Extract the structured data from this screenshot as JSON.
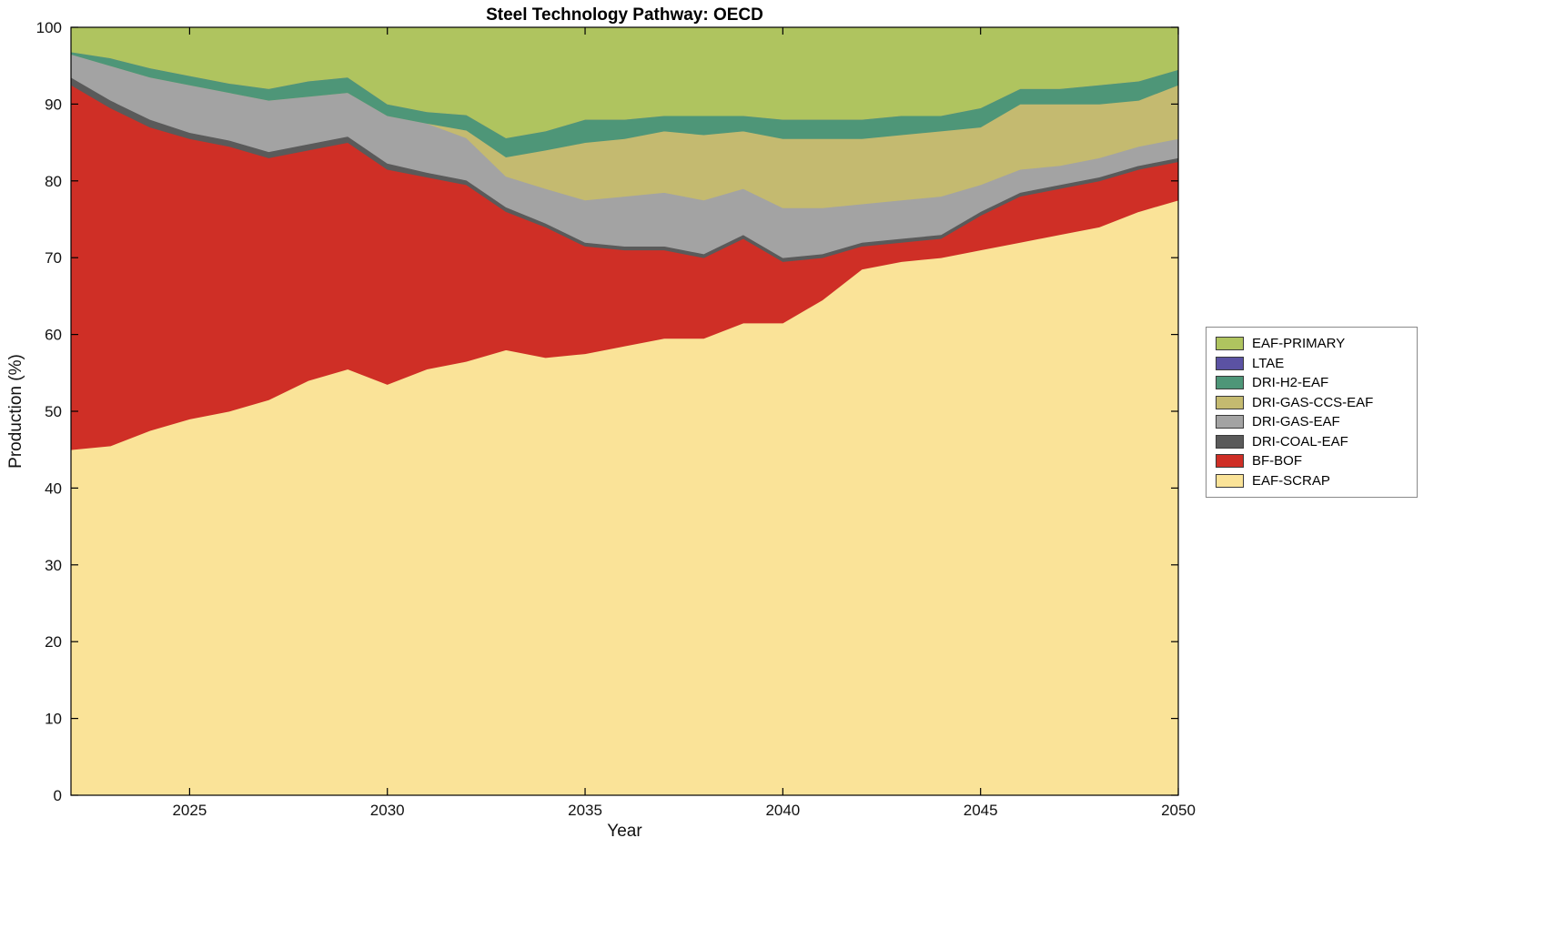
{
  "chart_data": {
    "type": "area",
    "stacked": true,
    "title": "Steel Technology Pathway: OECD",
    "xlabel": "Year",
    "ylabel": "Production (%)",
    "xlim": [
      2022,
      2050
    ],
    "ylim": [
      0,
      100
    ],
    "xticks": [
      2025,
      2030,
      2035,
      2040,
      2045,
      2050
    ],
    "yticks": [
      0,
      10,
      20,
      30,
      40,
      50,
      60,
      70,
      80,
      90,
      100
    ],
    "grid": false,
    "legend_position": "right-outside",
    "units": "percent of production, stacked to 100",
    "x": [
      2022,
      2023,
      2024,
      2025,
      2026,
      2027,
      2028,
      2029,
      2030,
      2031,
      2032,
      2033,
      2034,
      2035,
      2036,
      2037,
      2038,
      2039,
      2040,
      2041,
      2042,
      2043,
      2044,
      2045,
      2046,
      2047,
      2048,
      2049,
      2050
    ],
    "series": [
      {
        "name": "EAF-SCRAP",
        "color": "#FAE398",
        "values": [
          45,
          45.5,
          47.5,
          49,
          50,
          51.5,
          54,
          55.5,
          53.5,
          55.5,
          56.5,
          58,
          57,
          57.5,
          58.5,
          59.5,
          59.5,
          61.5,
          61.5,
          64.5,
          68.5,
          69.5,
          70,
          71,
          72,
          73,
          74,
          76,
          77.5
        ]
      },
      {
        "name": "BF-BOF",
        "color": "#CF2F26",
        "values": [
          47.5,
          44,
          39.5,
          36.5,
          34.5,
          31.5,
          30,
          29.5,
          28,
          25,
          23,
          18,
          17,
          14,
          12.5,
          11.5,
          10.5,
          11,
          8,
          5.5,
          3,
          2.5,
          2.5,
          4.5,
          6,
          6,
          6,
          5.5,
          5
        ]
      },
      {
        "name": "DRI-COAL-EAF",
        "color": "#5A5A5A",
        "values": [
          1,
          1,
          1,
          0.8,
          0.8,
          0.8,
          0.8,
          0.8,
          0.8,
          0.6,
          0.6,
          0.6,
          0.5,
          0.5,
          0.5,
          0.5,
          0.5,
          0.5,
          0.5,
          0.5,
          0.5,
          0.5,
          0.5,
          0.5,
          0.5,
          0.5,
          0.5,
          0.5,
          0.5
        ]
      },
      {
        "name": "DRI-GAS-EAF",
        "color": "#A3A3A3",
        "values": [
          3,
          4.5,
          5.5,
          6.2,
          6.2,
          6.7,
          6.2,
          5.7,
          6.2,
          6.4,
          5.5,
          4,
          4.5,
          5.5,
          6.5,
          7,
          7,
          6,
          6.5,
          6,
          5,
          5,
          5,
          3.5,
          3,
          2.5,
          2.5,
          2.5,
          2.5
        ]
      },
      {
        "name": "DRI-GAS-CCS-EAF",
        "color": "#C4BA70",
        "values": [
          0,
          0,
          0,
          0,
          0,
          0,
          0,
          0,
          0,
          0,
          1,
          2.5,
          5,
          7.5,
          7.5,
          8,
          8.5,
          7.5,
          9,
          9,
          8.5,
          8.5,
          8.5,
          7.5,
          8.5,
          8,
          7,
          6,
          7
        ]
      },
      {
        "name": "DRI-H2-EAF",
        "color": "#4E9678",
        "values": [
          0.3,
          1,
          1.2,
          1.2,
          1.2,
          1.5,
          2,
          2,
          1.5,
          1.5,
          2,
          2.5,
          2.5,
          3,
          2.5,
          2,
          2.5,
          2,
          2.5,
          2.5,
          2.5,
          2.5,
          2,
          2.5,
          2,
          2,
          2.5,
          2.5,
          2
        ]
      },
      {
        "name": "LTAE",
        "color": "#5B52A3",
        "values": [
          0,
          0,
          0,
          0,
          0,
          0,
          0,
          0,
          0,
          0,
          0,
          0,
          0,
          0,
          0,
          0,
          0,
          0,
          0,
          0,
          0,
          0,
          0,
          0,
          0,
          0,
          0,
          0,
          0
        ]
      },
      {
        "name": "EAF-PRIMARY",
        "color": "#AFC45F",
        "values": [
          3.2,
          4,
          5.3,
          6.3,
          7.3,
          8,
          7,
          6.5,
          10,
          11,
          11.4,
          14.4,
          13.5,
          12,
          12,
          11.5,
          11.5,
          11.5,
          12,
          12,
          12,
          11.5,
          11.5,
          10.5,
          8,
          8,
          7.5,
          7,
          5.5
        ]
      }
    ],
    "legend_order_top_to_bottom": [
      "EAF-PRIMARY",
      "LTAE",
      "DRI-H2-EAF",
      "DRI-GAS-CCS-EAF",
      "DRI-GAS-EAF",
      "DRI-COAL-EAF",
      "BF-BOF",
      "EAF-SCRAP"
    ]
  }
}
